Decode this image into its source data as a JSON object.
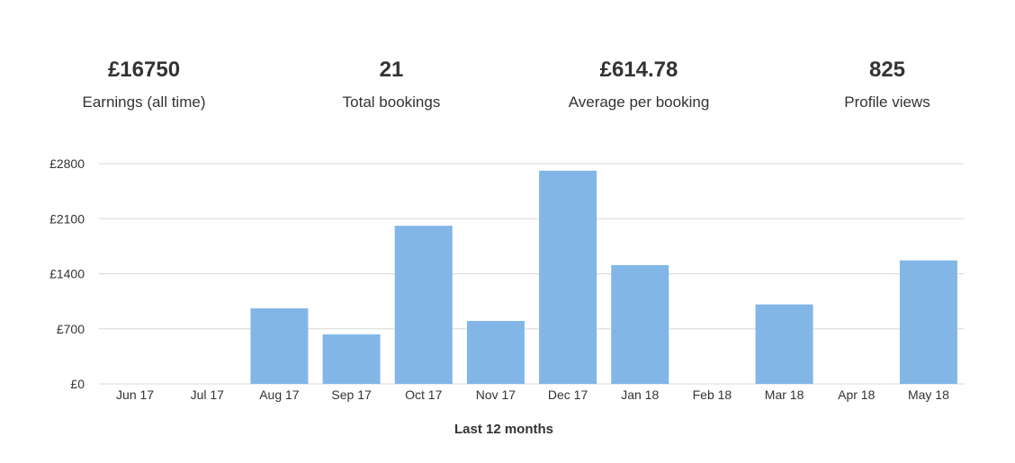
{
  "stats": [
    {
      "value": "£16750",
      "label": "Earnings (all time)"
    },
    {
      "value": "21",
      "label": "Total bookings"
    },
    {
      "value": "£614.78",
      "label": "Average per booking"
    },
    {
      "value": "825",
      "label": "Profile views"
    }
  ],
  "colors": {
    "bar": "#82b6e6",
    "grid": "#d9d9d9",
    "text": "#333333"
  },
  "chart_data": {
    "type": "bar",
    "categories": [
      "Jun 17",
      "Jul 17",
      "Aug 17",
      "Sep 17",
      "Oct 17",
      "Nov 17",
      "Dec 17",
      "Jan 18",
      "Feb 18",
      "Mar 18",
      "Apr 18",
      "May 18"
    ],
    "values": [
      0,
      0,
      960,
      630,
      2010,
      800,
      2710,
      1510,
      0,
      1010,
      0,
      1570
    ],
    "ylim": [
      0,
      2800
    ],
    "yticks": [
      0,
      700,
      1400,
      2100,
      2800
    ],
    "ytick_labels": [
      "£0",
      "£700",
      "£1400",
      "£2100",
      "£2800"
    ],
    "xlabel": "Last 12 months",
    "ylabel": "",
    "grid": true
  }
}
